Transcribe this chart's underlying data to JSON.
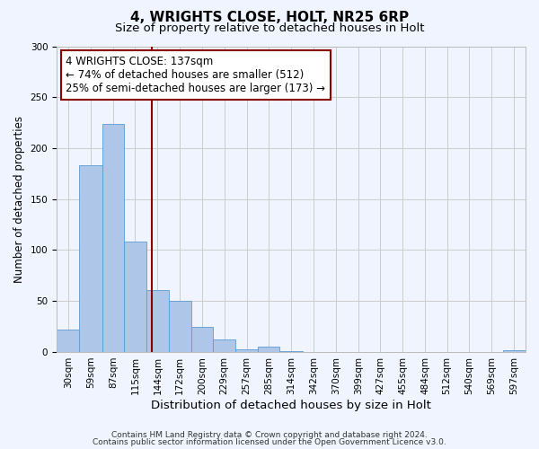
{
  "title": "4, WRIGHTS CLOSE, HOLT, NR25 6RP",
  "subtitle": "Size of property relative to detached houses in Holt",
  "xlabel": "Distribution of detached houses by size in Holt",
  "ylabel": "Number of detached properties",
  "bin_labels": [
    "30sqm",
    "59sqm",
    "87sqm",
    "115sqm",
    "144sqm",
    "172sqm",
    "200sqm",
    "229sqm",
    "257sqm",
    "285sqm",
    "314sqm",
    "342sqm",
    "370sqm",
    "399sqm",
    "427sqm",
    "455sqm",
    "484sqm",
    "512sqm",
    "540sqm",
    "569sqm",
    "597sqm"
  ],
  "bin_edges": [
    15.5,
    44.5,
    73.5,
    101.5,
    129.5,
    158.5,
    186.5,
    214.5,
    243.5,
    271.5,
    299.5,
    328.5,
    356.5,
    385.5,
    413.5,
    441.5,
    470.5,
    498.5,
    526.5,
    555.5,
    583.5,
    612.5
  ],
  "counts": [
    22,
    183,
    224,
    108,
    61,
    50,
    25,
    12,
    3,
    5,
    1,
    0,
    0,
    0,
    0,
    0,
    0,
    0,
    0,
    0,
    2
  ],
  "bar_color": "#aec6e8",
  "bar_edge_color": "#5b9bd5",
  "vline_x": 137,
  "vline_color": "#8b0000",
  "annotation_line1": "4 WRIGHTS CLOSE: 137sqm",
  "annotation_line2": "← 74% of detached houses are smaller (512)",
  "annotation_line3": "25% of semi-detached houses are larger (173) →",
  "annotation_box_facecolor": "#ffffff",
  "annotation_box_edgecolor": "#8b0000",
  "annotation_fontsize": 8.5,
  "ylim": [
    0,
    300
  ],
  "yticks": [
    0,
    50,
    100,
    150,
    200,
    250,
    300
  ],
  "footer_line1": "Contains HM Land Registry data © Crown copyright and database right 2024.",
  "footer_line2": "Contains public sector information licensed under the Open Government Licence v3.0.",
  "title_fontsize": 11,
  "subtitle_fontsize": 9.5,
  "xlabel_fontsize": 9.5,
  "ylabel_fontsize": 8.5,
  "tick_fontsize": 7.5,
  "footer_fontsize": 6.5,
  "background_color": "#f0f4ff"
}
